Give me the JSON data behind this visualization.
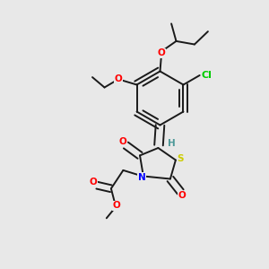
{
  "bg_color": "#e8e8e8",
  "bond_color": "#1a1a1a",
  "bond_width": 1.4,
  "atom_colors": {
    "O": "#ff0000",
    "N": "#0000ff",
    "S": "#cccc00",
    "Cl": "#00cc00",
    "H": "#4d9999",
    "C": "#1a1a1a"
  },
  "font_size": 7.5,
  "fig_size": [
    3.0,
    3.0
  ],
  "dpi": 100
}
